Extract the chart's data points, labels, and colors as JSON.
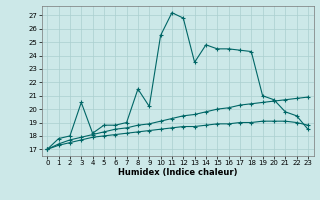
{
  "title": "",
  "xlabel": "Humidex (Indice chaleur)",
  "ylabel": "",
  "bg_color": "#cce8e8",
  "grid_color": "#aacfcf",
  "line_color": "#006666",
  "xlim": [
    -0.5,
    23.5
  ],
  "ylim": [
    16.5,
    27.7
  ],
  "xticks": [
    0,
    1,
    2,
    3,
    4,
    5,
    6,
    7,
    8,
    9,
    10,
    11,
    12,
    13,
    14,
    15,
    16,
    17,
    18,
    19,
    20,
    21,
    22,
    23
  ],
  "yticks": [
    17,
    18,
    19,
    20,
    21,
    22,
    23,
    24,
    25,
    26,
    27
  ],
  "series1": [
    17.0,
    17.8,
    18.0,
    20.5,
    18.2,
    18.8,
    18.8,
    19.0,
    21.5,
    20.2,
    25.5,
    27.2,
    26.8,
    23.5,
    24.8,
    24.5,
    24.5,
    24.4,
    24.3,
    21.0,
    20.7,
    19.8,
    19.5,
    18.5
  ],
  "series2": [
    17.0,
    17.4,
    17.7,
    17.9,
    18.1,
    18.3,
    18.5,
    18.6,
    18.8,
    18.9,
    19.1,
    19.3,
    19.5,
    19.6,
    19.8,
    20.0,
    20.1,
    20.3,
    20.4,
    20.5,
    20.6,
    20.7,
    20.8,
    20.9
  ],
  "series3": [
    17.0,
    17.3,
    17.5,
    17.7,
    17.9,
    18.0,
    18.1,
    18.2,
    18.3,
    18.4,
    18.5,
    18.6,
    18.7,
    18.7,
    18.8,
    18.9,
    18.9,
    19.0,
    19.0,
    19.1,
    19.1,
    19.1,
    19.0,
    18.8
  ],
  "tick_fontsize": 5,
  "xlabel_fontsize": 6,
  "marker_size": 3,
  "line_width": 0.8
}
